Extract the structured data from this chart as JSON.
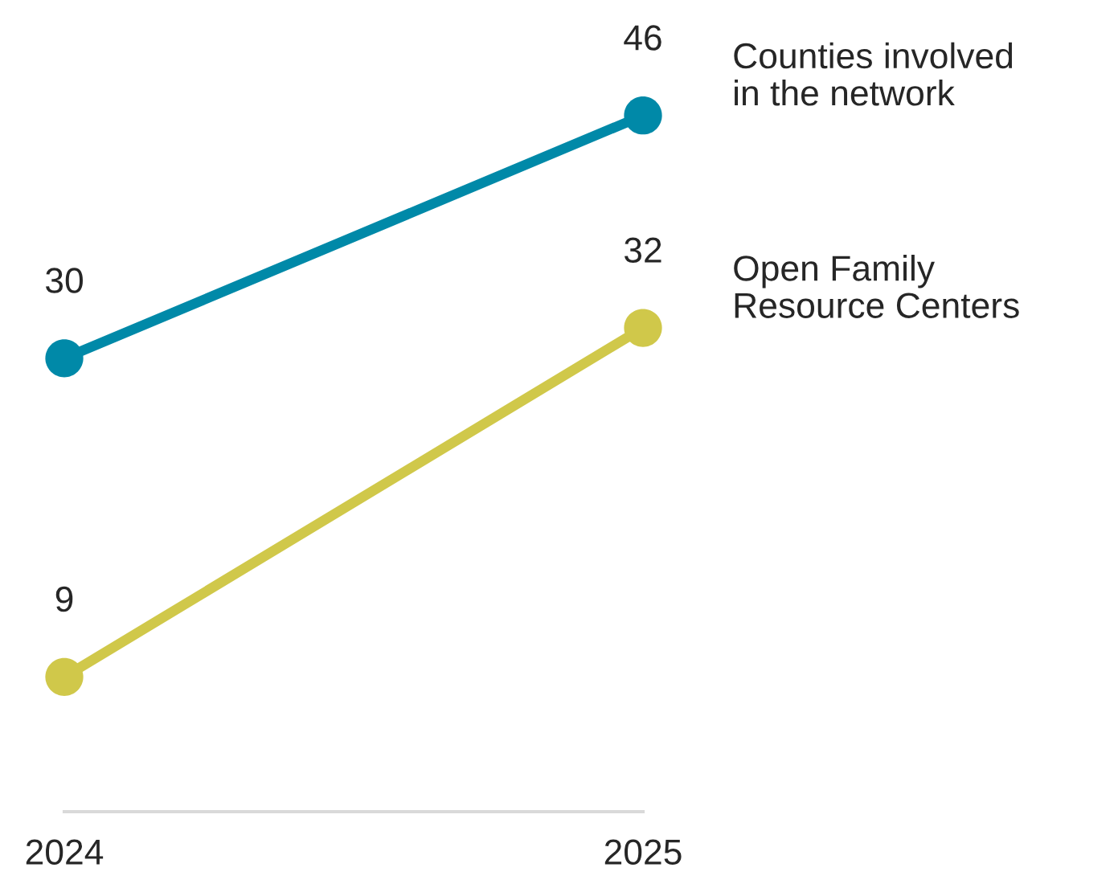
{
  "chart_data": {
    "type": "line",
    "categories": [
      "2024",
      "2025"
    ],
    "tick_labels": "x",
    "data_labels": true,
    "marker": "circle",
    "line_style": "solid",
    "grid": false,
    "legend": false,
    "series": [
      {
        "name": "Counties involved\nin the network",
        "color": "#0089a8",
        "values": [
          30,
          46
        ]
      },
      {
        "name": "Open Family\nResource Centers",
        "color": "#d0c84a",
        "values": [
          9,
          32
        ]
      }
    ]
  }
}
